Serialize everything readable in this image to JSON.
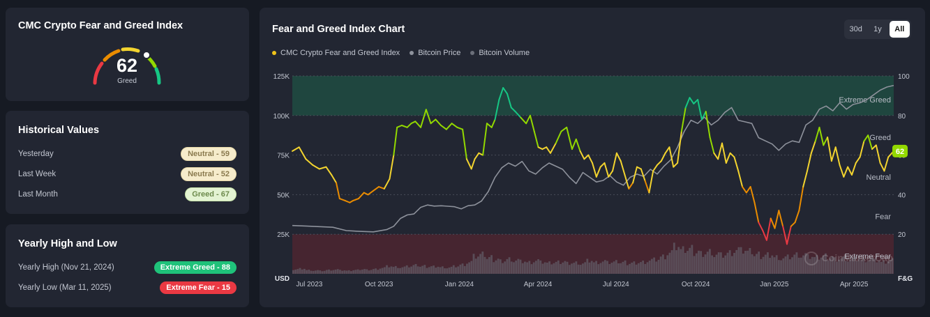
{
  "index_card": {
    "title": "CMC Crypto Fear and Greed Index",
    "value": "62",
    "label": "Greed",
    "gauge_level": 0.62
  },
  "historical": {
    "title": "Historical Values",
    "rows": [
      {
        "label": "Yesterday",
        "badge": "Neutral - 59",
        "kind": "neutral"
      },
      {
        "label": "Last Week",
        "badge": "Neutral - 52",
        "kind": "neutral"
      },
      {
        "label": "Last Month",
        "badge": "Greed - 67",
        "kind": "greed"
      }
    ]
  },
  "yearly": {
    "title": "Yearly High and Low",
    "high_label": "Yearly High",
    "high_date": "(Nov 21, 2024)",
    "high_badge": "Extreme Greed - 88",
    "low_label": "Yearly Low",
    "low_date": "(Mar 11, 2025)",
    "low_badge": "Extreme Fear - 15"
  },
  "chart_card": {
    "title": "Fear and Greed Index Chart",
    "ranges": [
      "30d",
      "1y",
      "All"
    ],
    "active_range": "All",
    "legend": [
      {
        "name": "CMC Crypto Fear and Greed Index",
        "color": "#f0c419"
      },
      {
        "name": "Bitcoin Price",
        "color": "#8e929c"
      },
      {
        "name": "Bitcoin Volume",
        "color": "#6b6f7a"
      }
    ],
    "watermark": "CoinMarketCap",
    "current_badge": "62"
  },
  "chart_data": {
    "type": "line",
    "left_axis": {
      "unit_label": "USD",
      "ticks": [
        "25K",
        "50K",
        "75K",
        "100K",
        "125K"
      ],
      "values": [
        25000,
        50000,
        75000,
        100000,
        125000
      ],
      "range": [
        0,
        125000
      ]
    },
    "right_axis": {
      "unit_label": "F&G",
      "ticks": [
        "20",
        "40",
        "60",
        "80",
        "100"
      ],
      "values": [
        20,
        40,
        60,
        80,
        100
      ],
      "range": [
        0,
        100
      ]
    },
    "x_ticks": [
      "Jul 2023",
      "Oct 2023",
      "Jan 2024",
      "Apr 2024",
      "Jul 2024",
      "Oct 2024",
      "Jan 2025",
      "Apr 2025"
    ],
    "zones": [
      {
        "name": "Extreme Greed",
        "from": 80,
        "to": 100,
        "color": "#1f4a40"
      },
      {
        "name": "Greed",
        "from": 60,
        "to": 80
      },
      {
        "name": "Neutral",
        "from": 40,
        "to": 60
      },
      {
        "name": "Fear",
        "from": 20,
        "to": 40
      },
      {
        "name": "Extreme Fear",
        "from": 0,
        "to": 20,
        "color": "#4a2630"
      }
    ],
    "fear_greed_index": [
      [
        0.0,
        62
      ],
      [
        1.0,
        64
      ],
      [
        2.0,
        58
      ],
      [
        3.0,
        55
      ],
      [
        4.0,
        53
      ],
      [
        5.0,
        54
      ],
      [
        5.8,
        50
      ],
      [
        6.5,
        46
      ],
      [
        7.0,
        38
      ],
      [
        7.8,
        37
      ],
      [
        8.5,
        36
      ],
      [
        9.0,
        37
      ],
      [
        9.8,
        38
      ],
      [
        10.6,
        41
      ],
      [
        11.2,
        40
      ],
      [
        12.0,
        42
      ],
      [
        12.8,
        44
      ],
      [
        13.6,
        43
      ],
      [
        14.4,
        48
      ],
      [
        15.0,
        60
      ],
      [
        15.5,
        74
      ],
      [
        16.2,
        75
      ],
      [
        17.0,
        74
      ],
      [
        17.6,
        76
      ],
      [
        18.2,
        77
      ],
      [
        19.0,
        74
      ],
      [
        19.8,
        83
      ],
      [
        20.5,
        76
      ],
      [
        21.2,
        78
      ],
      [
        22.0,
        75
      ],
      [
        22.8,
        73
      ],
      [
        23.6,
        76
      ],
      [
        24.4,
        74
      ],
      [
        25.2,
        73
      ],
      [
        25.8,
        58
      ],
      [
        26.5,
        53
      ],
      [
        27.0,
        58
      ],
      [
        27.6,
        61
      ],
      [
        28.2,
        60
      ],
      [
        28.8,
        76
      ],
      [
        29.5,
        74
      ],
      [
        30.0,
        78
      ],
      [
        30.6,
        88
      ],
      [
        31.2,
        94
      ],
      [
        31.8,
        91
      ],
      [
        32.4,
        84
      ],
      [
        33.0,
        82
      ],
      [
        33.8,
        79
      ],
      [
        34.6,
        76
      ],
      [
        35.2,
        80
      ],
      [
        35.8,
        72
      ],
      [
        36.4,
        64
      ],
      [
        37.0,
        63
      ],
      [
        37.6,
        64
      ],
      [
        38.2,
        61
      ],
      [
        39.0,
        66
      ],
      [
        39.8,
        72
      ],
      [
        40.6,
        74
      ],
      [
        41.4,
        63
      ],
      [
        42.0,
        68
      ],
      [
        42.6,
        62
      ],
      [
        43.2,
        58
      ],
      [
        43.8,
        60
      ],
      [
        44.4,
        56
      ],
      [
        45.0,
        49
      ],
      [
        45.6,
        54
      ],
      [
        46.2,
        56
      ],
      [
        46.8,
        49
      ],
      [
        47.4,
        52
      ],
      [
        48.0,
        61
      ],
      [
        48.6,
        57
      ],
      [
        49.2,
        50
      ],
      [
        49.8,
        43
      ],
      [
        50.4,
        46
      ],
      [
        51.0,
        54
      ],
      [
        51.6,
        53
      ],
      [
        52.2,
        47
      ],
      [
        52.8,
        41
      ],
      [
        53.4,
        52
      ],
      [
        54.0,
        55
      ],
      [
        54.6,
        57
      ],
      [
        55.2,
        61
      ],
      [
        55.8,
        64
      ],
      [
        56.4,
        54
      ],
      [
        57.0,
        56
      ],
      [
        57.6,
        72
      ],
      [
        58.2,
        84
      ],
      [
        58.8,
        89
      ],
      [
        59.4,
        86
      ],
      [
        60.0,
        88
      ],
      [
        60.6,
        78
      ],
      [
        61.2,
        82
      ],
      [
        61.8,
        69
      ],
      [
        62.4,
        61
      ],
      [
        63.0,
        58
      ],
      [
        63.6,
        66
      ],
      [
        64.2,
        56
      ],
      [
        64.8,
        61
      ],
      [
        65.4,
        59
      ],
      [
        66.0,
        52
      ],
      [
        66.6,
        44
      ],
      [
        67.2,
        41
      ],
      [
        67.8,
        44
      ],
      [
        68.4,
        36
      ],
      [
        69.0,
        26
      ],
      [
        69.6,
        22
      ],
      [
        70.2,
        17
      ],
      [
        70.8,
        28
      ],
      [
        71.4,
        23
      ],
      [
        72.0,
        32
      ],
      [
        72.6,
        24
      ],
      [
        73.2,
        15
      ],
      [
        73.8,
        24
      ],
      [
        74.4,
        26
      ],
      [
        75.0,
        32
      ],
      [
        75.6,
        44
      ],
      [
        76.2,
        52
      ],
      [
        76.8,
        61
      ],
      [
        77.4,
        67
      ],
      [
        78.0,
        74
      ],
      [
        78.6,
        65
      ],
      [
        79.2,
        69
      ],
      [
        79.8,
        57
      ],
      [
        80.4,
        64
      ],
      [
        81.0,
        55
      ],
      [
        81.6,
        49
      ],
      [
        82.2,
        54
      ],
      [
        82.8,
        50
      ],
      [
        83.4,
        56
      ],
      [
        84.0,
        59
      ],
      [
        84.6,
        67
      ],
      [
        85.2,
        70
      ],
      [
        85.8,
        63
      ],
      [
        86.4,
        65
      ],
      [
        87.0,
        56
      ],
      [
        87.6,
        52
      ],
      [
        88.2,
        59
      ],
      [
        89.0,
        62
      ]
    ],
    "bitcoin_price": [
      [
        0.0,
        30500
      ],
      [
        2.0,
        30200
      ],
      [
        4.0,
        29800
      ],
      [
        6.0,
        29400
      ],
      [
        8.0,
        27300
      ],
      [
        10.0,
        26800
      ],
      [
        12.0,
        26500
      ],
      [
        14.0,
        28000
      ],
      [
        15.0,
        30000
      ],
      [
        16.0,
        35000
      ],
      [
        17.0,
        37200
      ],
      [
        18.0,
        37800
      ],
      [
        19.0,
        42000
      ],
      [
        20.0,
        43500
      ],
      [
        21.0,
        42800
      ],
      [
        22.0,
        43000
      ],
      [
        23.0,
        42700
      ],
      [
        24.0,
        42400
      ],
      [
        25.0,
        41000
      ],
      [
        26.0,
        43000
      ],
      [
        27.0,
        43500
      ],
      [
        28.0,
        46000
      ],
      [
        29.0,
        52000
      ],
      [
        30.0,
        61000
      ],
      [
        31.0,
        67000
      ],
      [
        32.0,
        70000
      ],
      [
        33.0,
        68000
      ],
      [
        34.0,
        71000
      ],
      [
        35.0,
        65000
      ],
      [
        36.0,
        63000
      ],
      [
        37.0,
        67000
      ],
      [
        38.0,
        70000
      ],
      [
        39.0,
        68000
      ],
      [
        40.0,
        66000
      ],
      [
        41.0,
        61000
      ],
      [
        42.0,
        57000
      ],
      [
        43.0,
        64000
      ],
      [
        44.0,
        61000
      ],
      [
        45.0,
        58000
      ],
      [
        46.0,
        59000
      ],
      [
        47.0,
        62000
      ],
      [
        48.0,
        58000
      ],
      [
        49.0,
        56000
      ],
      [
        50.0,
        61000
      ],
      [
        51.0,
        63000
      ],
      [
        52.0,
        61500
      ],
      [
        53.0,
        66000
      ],
      [
        54.0,
        63000
      ],
      [
        55.0,
        68000
      ],
      [
        56.0,
        72000
      ],
      [
        57.0,
        80000
      ],
      [
        58.0,
        90000
      ],
      [
        59.0,
        97000
      ],
      [
        60.0,
        95000
      ],
      [
        61.0,
        99000
      ],
      [
        62.0,
        94000
      ],
      [
        63.0,
        97000
      ],
      [
        64.0,
        102000
      ],
      [
        65.0,
        105000
      ],
      [
        66.0,
        97000
      ],
      [
        67.0,
        96000
      ],
      [
        68.0,
        95000
      ],
      [
        69.0,
        86000
      ],
      [
        70.0,
        84000
      ],
      [
        71.0,
        82000
      ],
      [
        72.0,
        78000
      ],
      [
        73.0,
        82000
      ],
      [
        74.0,
        84000
      ],
      [
        75.0,
        83000
      ],
      [
        76.0,
        94000
      ],
      [
        77.0,
        97000
      ],
      [
        78.0,
        104000
      ],
      [
        79.0,
        106000
      ],
      [
        80.0,
        103000
      ],
      [
        81.0,
        108000
      ],
      [
        82.0,
        104000
      ],
      [
        83.0,
        107000
      ],
      [
        84.0,
        108000
      ],
      [
        85.0,
        110000
      ],
      [
        86.0,
        113000
      ],
      [
        87.0,
        116000
      ],
      [
        88.0,
        118000
      ],
      [
        89.0,
        119000
      ]
    ],
    "bitcoin_volume_note": "Bitcoin Volume shown as bars at bottom of plot (relative heights)",
    "bitcoin_volume": [
      0.12,
      0.14,
      0.1,
      0.09,
      0.08,
      0.1,
      0.11,
      0.09,
      0.08,
      0.1,
      0.12,
      0.11,
      0.13,
      0.16,
      0.2,
      0.18,
      0.17,
      0.19,
      0.22,
      0.2,
      0.19,
      0.2,
      0.18,
      0.17,
      0.2,
      0.24,
      0.3,
      0.45,
      0.5,
      0.42,
      0.38,
      0.35,
      0.4,
      0.36,
      0.33,
      0.3,
      0.34,
      0.3,
      0.28,
      0.3,
      0.32,
      0.29,
      0.3,
      0.28,
      0.35,
      0.3,
      0.32,
      0.29,
      0.31,
      0.3,
      0.28,
      0.3,
      0.32,
      0.36,
      0.38,
      0.45,
      0.55,
      0.7,
      0.62,
      0.65,
      0.58,
      0.55,
      0.6,
      0.52,
      0.5,
      0.55,
      0.62,
      0.6,
      0.58,
      0.5,
      0.48,
      0.52,
      0.45,
      0.42,
      0.45,
      0.5,
      0.48,
      0.44,
      0.42,
      0.46,
      0.44,
      0.4,
      0.42,
      0.38,
      0.4,
      0.36,
      0.38,
      0.34,
      0.3,
      0.35
    ]
  }
}
